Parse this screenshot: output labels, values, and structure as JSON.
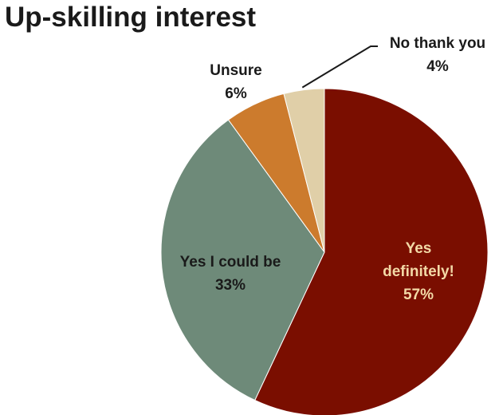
{
  "chart_data": {
    "type": "pie",
    "title": "Up-skilling interest",
    "slices": [
      {
        "label_lines": [
          "Yes",
          "definitely!"
        ],
        "value": 57,
        "value_label": "57%",
        "color": "#7a0e00",
        "label_color": "#f3d9a6"
      },
      {
        "label_lines": [
          "Yes I could be"
        ],
        "value": 33,
        "value_label": "33%",
        "color": "#6e8a79",
        "label_color": "#1a1a1a"
      },
      {
        "label_lines": [
          "Unsure"
        ],
        "value": 6,
        "value_label": "6%",
        "color": "#cc7b2d",
        "label_color": "#1a1a1a"
      },
      {
        "label_lines": [
          "No thank you"
        ],
        "value": 4,
        "value_label": "4%",
        "color": "#e0cfa8",
        "label_color": "#1a1a1a"
      }
    ],
    "start": "12 o'clock",
    "direction": "clockwise",
    "legend": "none"
  }
}
